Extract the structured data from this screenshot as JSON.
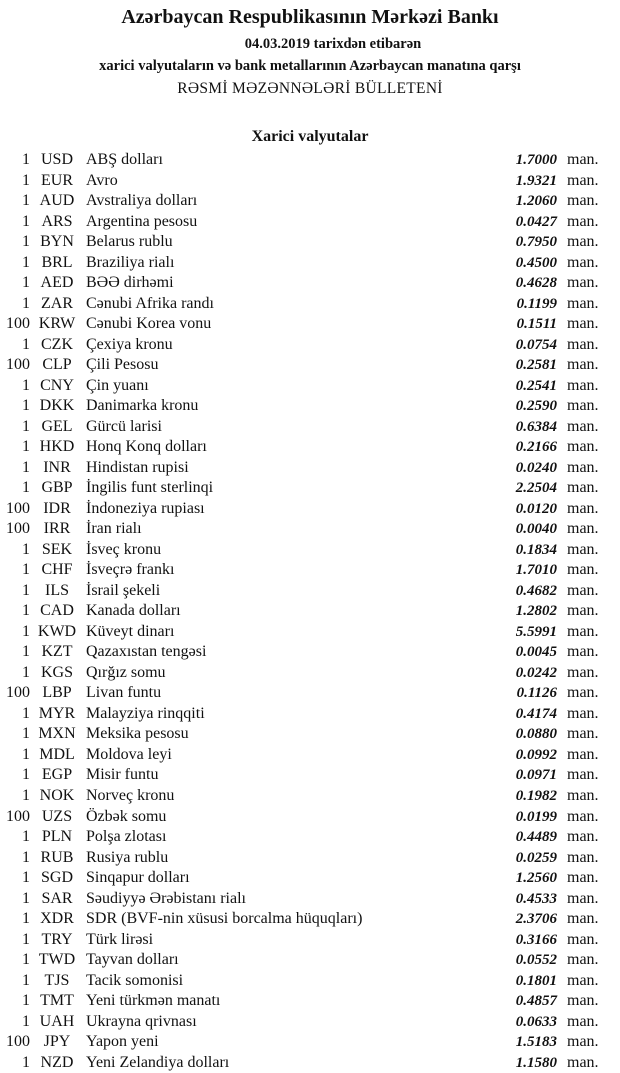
{
  "header": {
    "title": "Azərbaycan Respublikasının Mərkəzi Bankı",
    "date_line": "04.03.2019  tarixdən etibarən",
    "subtitle": "xarici valyutaların və bank metallarının Azərbaycan manatına qarşı",
    "bulletin": "RƏSMİ MƏZƏNNƏLƏRİ BÜLLETENİ",
    "section": "Xarici valyutalar"
  },
  "unit_label": "man.",
  "rates": [
    {
      "amount": "1",
      "code": "USD",
      "name": "ABŞ dolları",
      "rate": "1.7000"
    },
    {
      "amount": "1",
      "code": "EUR",
      "name": "Avro",
      "rate": "1.9321"
    },
    {
      "amount": "1",
      "code": "AUD",
      "name": "Avstraliya dolları",
      "rate": "1.2060"
    },
    {
      "amount": "1",
      "code": "ARS",
      "name": "Argentina pesosu",
      "rate": "0.0427"
    },
    {
      "amount": "1",
      "code": "BYN",
      "name": "Belarus rublu",
      "rate": "0.7950"
    },
    {
      "amount": "1",
      "code": "BRL",
      "name": "Braziliya rialı",
      "rate": "0.4500"
    },
    {
      "amount": "1",
      "code": "AED",
      "name": "BƏƏ dirhəmi",
      "rate": "0.4628"
    },
    {
      "amount": "1",
      "code": "ZAR",
      "name": "Cənubi Afrika randı",
      "rate": "0.1199"
    },
    {
      "amount": "100",
      "code": "KRW",
      "name": "Cənubi Korea vonu",
      "rate": "0.1511"
    },
    {
      "amount": "1",
      "code": "CZK",
      "name": "Çexiya kronu",
      "rate": "0.0754"
    },
    {
      "amount": "100",
      "code": "CLP",
      "name": "Çili Pesosu",
      "rate": "0.2581"
    },
    {
      "amount": "1",
      "code": "CNY",
      "name": "Çin yuanı",
      "rate": "0.2541"
    },
    {
      "amount": "1",
      "code": "DKK",
      "name": "Danimarka kronu",
      "rate": "0.2590"
    },
    {
      "amount": "1",
      "code": "GEL",
      "name": "Gürcü larisi",
      "rate": "0.6384"
    },
    {
      "amount": "1",
      "code": "HKD",
      "name": "Honq Konq dolları",
      "rate": "0.2166"
    },
    {
      "amount": "1",
      "code": "INR",
      "name": "Hindistan rupisi",
      "rate": "0.0240"
    },
    {
      "amount": "1",
      "code": "GBP",
      "name": "İngilis funt sterlinqi",
      "rate": "2.2504"
    },
    {
      "amount": "100",
      "code": "IDR",
      "name": "İndoneziya rupiası",
      "rate": "0.0120"
    },
    {
      "amount": "100",
      "code": "IRR",
      "name": "İran rialı",
      "rate": "0.0040"
    },
    {
      "amount": "1",
      "code": "SEK",
      "name": "İsveç kronu",
      "rate": "0.1834"
    },
    {
      "amount": "1",
      "code": "CHF",
      "name": "İsveçrə frankı",
      "rate": "1.7010"
    },
    {
      "amount": "1",
      "code": "ILS",
      "name": "İsrail şekeli",
      "rate": "0.4682"
    },
    {
      "amount": "1",
      "code": "CAD",
      "name": "Kanada dolları",
      "rate": "1.2802"
    },
    {
      "amount": "1",
      "code": "KWD",
      "name": "Küveyt dinarı",
      "rate": "5.5991"
    },
    {
      "amount": "1",
      "code": "KZT",
      "name": "Qazaxıstan tengəsi",
      "rate": "0.0045"
    },
    {
      "amount": "1",
      "code": "KGS",
      "name": "Qırğız somu",
      "rate": "0.0242"
    },
    {
      "amount": "100",
      "code": "LBP",
      "name": "Livan funtu",
      "rate": "0.1126"
    },
    {
      "amount": "1",
      "code": "MYR",
      "name": "Malayziya rinqqiti",
      "rate": "0.4174"
    },
    {
      "amount": "1",
      "code": "MXN",
      "name": "Meksika pesosu",
      "rate": "0.0880"
    },
    {
      "amount": "1",
      "code": "MDL",
      "name": "Moldova leyi",
      "rate": "0.0992"
    },
    {
      "amount": "1",
      "code": "EGP",
      "name": "Misir funtu",
      "rate": "0.0971"
    },
    {
      "amount": "1",
      "code": "NOK",
      "name": "Norveç kronu",
      "rate": "0.1982"
    },
    {
      "amount": "100",
      "code": "UZS",
      "name": "Özbək somu",
      "rate": "0.0199"
    },
    {
      "amount": "1",
      "code": "PLN",
      "name": "Polşa zlotası",
      "rate": "0.4489"
    },
    {
      "amount": "1",
      "code": "RUB",
      "name": "Rusiya rublu",
      "rate": "0.0259"
    },
    {
      "amount": "1",
      "code": "SGD",
      "name": "Sinqapur dolları",
      "rate": "1.2560"
    },
    {
      "amount": "1",
      "code": "SAR",
      "name": "Səudiyyə Ərəbistanı rialı",
      "rate": "0.4533"
    },
    {
      "amount": "1",
      "code": "XDR",
      "name": "SDR (BVF-nin xüsusi borcalma hüquqları)",
      "rate": "2.3706"
    },
    {
      "amount": "1",
      "code": "TRY",
      "name": "Türk lirəsi",
      "rate": "0.3166"
    },
    {
      "amount": "1",
      "code": "TWD",
      "name": "Tayvan dolları",
      "rate": "0.0552"
    },
    {
      "amount": "1",
      "code": "TJS",
      "name": "Tacik somonisi",
      "rate": "0.1801"
    },
    {
      "amount": "1",
      "code": "TMT",
      "name": "Yeni türkmən manatı",
      "rate": "0.4857"
    },
    {
      "amount": "1",
      "code": "UAH",
      "name": "Ukrayna qrivnası",
      "rate": "0.0633"
    },
    {
      "amount": "100",
      "code": "JPY",
      "name": "Yapon yeni",
      "rate": "1.5183"
    },
    {
      "amount": "1",
      "code": "NZD",
      "name": "Yeni Zelandiya dolları",
      "rate": "1.1580"
    }
  ]
}
